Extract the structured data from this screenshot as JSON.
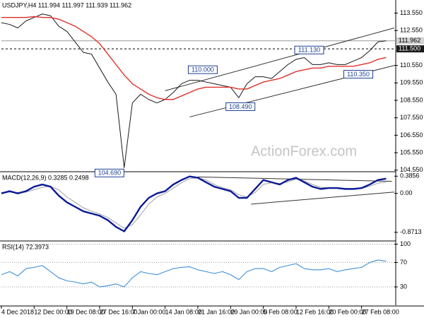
{
  "chart_data": [
    {
      "type": "line",
      "title": "USDJPY,H4 111.994 111.997 111.939 111.962",
      "watermark": "ActionForex.com",
      "x": [
        0,
        1,
        2,
        3,
        4,
        5,
        6,
        7,
        8,
        9,
        10,
        11,
        12,
        13,
        14,
        15,
        16,
        17,
        18,
        19,
        20,
        21,
        22,
        23,
        24,
        25,
        26,
        27,
        28,
        29,
        30,
        31,
        32,
        33,
        34,
        35,
        36,
        37,
        38,
        39,
        40,
        41,
        42,
        43,
        44,
        45,
        46,
        47
      ],
      "series": [
        {
          "color": "#1a1a1a",
          "values": [
            113.0,
            112.9,
            112.7,
            113.1,
            113.3,
            113.5,
            113.4,
            112.8,
            112.5,
            111.9,
            111.3,
            111.2,
            110.4,
            109.6,
            108.9,
            104.69,
            108.4,
            108.9,
            108.6,
            108.4,
            108.6,
            109.0,
            109.5,
            109.7,
            109.7,
            109.6,
            109.5,
            109.4,
            109.3,
            108.7,
            109.5,
            109.9,
            109.9,
            109.8,
            110.2,
            110.6,
            110.9,
            111.0,
            110.6,
            110.6,
            110.7,
            110.6,
            110.6,
            110.8,
            111.0,
            111.4,
            111.9,
            111.96
          ]
        },
        {
          "color": "#e0302a",
          "values": [
            113.3,
            113.3,
            113.3,
            113.3,
            113.35,
            113.3,
            113.3,
            113.2,
            113.0,
            112.8,
            112.5,
            112.2,
            111.8,
            111.2,
            110.6,
            110.0,
            109.5,
            109.2,
            108.9,
            108.7,
            108.6,
            108.6,
            108.8,
            109.0,
            109.2,
            109.3,
            109.3,
            109.3,
            109.3,
            109.2,
            109.2,
            109.4,
            109.6,
            109.7,
            109.8,
            110.0,
            110.2,
            110.3,
            110.4,
            110.4,
            110.5,
            110.5,
            110.5,
            110.5,
            110.6,
            110.7,
            110.9,
            111.0
          ]
        }
      ],
      "xlim": [
        0,
        48
      ],
      "ylim": [
        104.5,
        114.3
      ],
      "yticks": [
        {
          "value": 113.55,
          "label": "113.550"
        },
        {
          "value": 112.55,
          "label": "112.550"
        },
        {
          "value": 110.55,
          "label": "110.550"
        },
        {
          "value": 109.55,
          "label": "109.550"
        },
        {
          "value": 108.55,
          "label": "108.550"
        },
        {
          "value": 107.55,
          "label": "107.550"
        },
        {
          "value": 106.55,
          "label": "106.550"
        },
        {
          "value": 105.55,
          "label": "105.550"
        },
        {
          "value": 104.55,
          "label": "104.550"
        }
      ],
      "hlines": [
        {
          "value": 111.962,
          "label": "111.962",
          "style": "solid"
        },
        {
          "value": 111.5,
          "label": "111.500",
          "style": "dashed"
        }
      ],
      "annotations": [
        {
          "x": 24.6,
          "value": 110.0,
          "label": "110.000",
          "anchor": "above"
        },
        {
          "x": 37.6,
          "value": 111.13,
          "label": "111.130",
          "anchor": "above"
        },
        {
          "x": 29.2,
          "value": 108.49,
          "label": "108.490",
          "anchor": "below"
        },
        {
          "x": 13.2,
          "value": 104.69,
          "label": "104.690",
          "anchor": "below"
        },
        {
          "x": 43.6,
          "value": 110.35,
          "label": "110.350",
          "anchor": "below"
        }
      ],
      "trendlines": [
        {
          "x": [
            20,
            48
          ],
          "y": [
            109.1,
            112.7
          ]
        },
        {
          "x": [
            23,
            48
          ],
          "y": [
            107.6,
            110.55
          ]
        }
      ],
      "trendline_color": "#333333"
    },
    {
      "type": "line",
      "title": "MACD(12,26,9) 0.3285 0.2498",
      "x": [
        0,
        1,
        2,
        3,
        4,
        5,
        6,
        7,
        8,
        9,
        10,
        11,
        12,
        13,
        14,
        15,
        16,
        17,
        18,
        19,
        20,
        21,
        22,
        23,
        24,
        25,
        26,
        27,
        28,
        29,
        30,
        31,
        32,
        33,
        34,
        35,
        36,
        37,
        38,
        39,
        40,
        41,
        42,
        43,
        44,
        45,
        46,
        47
      ],
      "series": [
        {
          "color": "#a0a0a0",
          "values": [
            0.02,
            0.03,
            0.02,
            0.03,
            0.08,
            0.14,
            0.16,
            0.08,
            -0.08,
            -0.2,
            -0.32,
            -0.4,
            -0.46,
            -0.54,
            -0.66,
            -0.78,
            -0.7,
            -0.48,
            -0.24,
            -0.08,
            0.0,
            0.12,
            0.24,
            0.33,
            0.35,
            0.3,
            0.2,
            0.13,
            0.08,
            -0.03,
            -0.08,
            0.02,
            0.2,
            0.24,
            0.22,
            0.26,
            0.32,
            0.28,
            0.2,
            0.14,
            0.12,
            0.12,
            0.11,
            0.1,
            0.11,
            0.16,
            0.23,
            0.25
          ]
        },
        {
          "color": "#0b1a96",
          "values": [
            0.0,
            0.05,
            0.0,
            0.05,
            0.15,
            0.2,
            0.15,
            -0.05,
            -0.2,
            -0.3,
            -0.4,
            -0.45,
            -0.5,
            -0.6,
            -0.75,
            -0.85,
            -0.6,
            -0.3,
            -0.1,
            0.0,
            0.05,
            0.2,
            0.3,
            0.38,
            0.35,
            0.25,
            0.15,
            0.1,
            0.05,
            -0.1,
            -0.1,
            0.1,
            0.3,
            0.25,
            0.2,
            0.3,
            0.35,
            0.25,
            0.15,
            0.1,
            0.12,
            0.12,
            0.1,
            0.1,
            0.12,
            0.2,
            0.3,
            0.33
          ]
        }
      ],
      "xlim": [
        0,
        48
      ],
      "ylim": [
        -1.05,
        0.47
      ],
      "yticks": [
        0.3856,
        {
          "value": 0,
          "label": "0.00"
        },
        -0.8713
      ],
      "trendlines": [
        {
          "x": [
            24,
            47.7
          ],
          "y": [
            0.37,
            0.27
          ]
        },
        {
          "x": [
            30.5,
            48
          ],
          "y": [
            -0.24,
            0.03
          ]
        }
      ],
      "trendline_color": "#333333"
    },
    {
      "type": "line",
      "title": "RSI(14) 72.3973",
      "x": [
        0,
        1,
        2,
        3,
        4,
        5,
        6,
        7,
        8,
        9,
        10,
        11,
        12,
        13,
        14,
        15,
        16,
        17,
        18,
        19,
        20,
        21,
        22,
        23,
        24,
        25,
        26,
        27,
        28,
        29,
        30,
        31,
        32,
        33,
        34,
        35,
        36,
        37,
        38,
        39,
        40,
        41,
        42,
        43,
        44,
        45,
        46,
        47
      ],
      "series": [
        {
          "color": "#3f8fd8",
          "values": [
            50,
            55,
            48,
            60,
            62,
            65,
            55,
            45,
            40,
            38,
            35,
            38,
            30,
            32,
            35,
            30,
            45,
            55,
            52,
            50,
            55,
            60,
            62,
            63,
            58,
            55,
            52,
            55,
            50,
            42,
            55,
            60,
            60,
            55,
            62,
            65,
            68,
            60,
            58,
            58,
            60,
            55,
            58,
            60,
            62,
            70,
            74,
            72
          ]
        }
      ],
      "xlim": [
        0,
        48
      ],
      "ylim": [
        0,
        104
      ],
      "yticks": [
        100,
        70,
        30
      ],
      "grid": true,
      "xticks": [
        {
          "value": 0,
          "label": "4 Dec 2018"
        },
        {
          "value": 4,
          "label": "12 Dec 00:00"
        },
        {
          "value": 8,
          "label": "19 Dec 08:00"
        },
        {
          "value": 12,
          "label": "27 Dec 16:00"
        },
        {
          "value": 16,
          "label": "7 Jan 00:00"
        },
        {
          "value": 20,
          "label": "14 Jan 08:00"
        },
        {
          "value": 24,
          "label": "21 Jan 16:00"
        },
        {
          "value": 28,
          "label": "29 Jan 00:00"
        },
        {
          "value": 32,
          "label": "5 Feb 08:00"
        },
        {
          "value": 36,
          "label": "12 Feb 16:00"
        },
        {
          "value": 40,
          "label": "20 Feb 00:00"
        },
        {
          "value": 44,
          "label": "27 Feb 08:00"
        }
      ]
    }
  ]
}
